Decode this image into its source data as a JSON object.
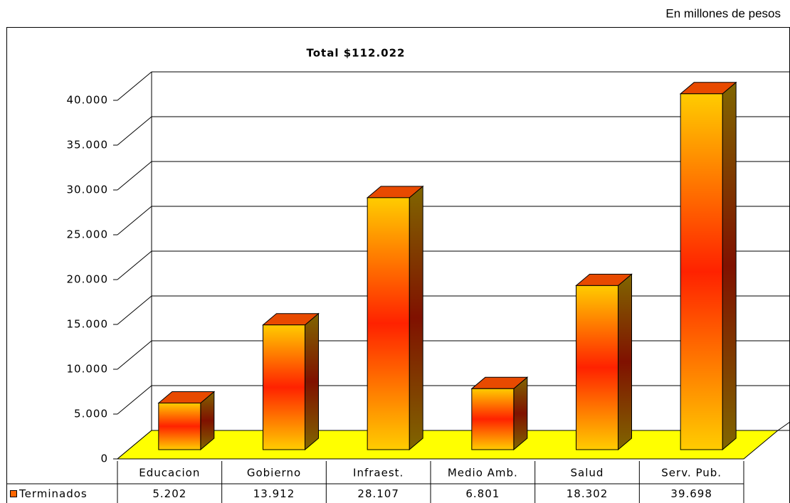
{
  "chart_data": {
    "type": "bar3d",
    "title": "Total $112.022",
    "subtitle": "En millones de pesos",
    "categories": [
      "Educacion",
      "Gobierno",
      "Infraest.",
      "Medio Amb.",
      "Salud",
      "Serv. Pub."
    ],
    "series": [
      {
        "name": "Terminados",
        "color": "#ff6600",
        "values": [
          5202,
          13912,
          28107,
          6801,
          18302,
          39698
        ],
        "value_labels": [
          "5.202",
          "13.912",
          "28.107",
          "6.801",
          "18.302",
          "39.698"
        ]
      }
    ],
    "ylim": [
      0,
      40000
    ],
    "yticks": [
      0,
      {
        "value": 5000,
        "label": "5.000"
      },
      {
        "value": 10000,
        "label": "10.000"
      },
      {
        "value": 15000,
        "label": "15.000"
      },
      {
        "value": 20000,
        "label": "20.000"
      },
      {
        "value": 25000,
        "label": "25.000"
      },
      {
        "value": 30000,
        "label": "30.000"
      },
      {
        "value": 35000,
        "label": "35.000"
      },
      {
        "value": 40000,
        "label": "40.000"
      }
    ],
    "grid": true,
    "floor_color": "#ffff00"
  }
}
